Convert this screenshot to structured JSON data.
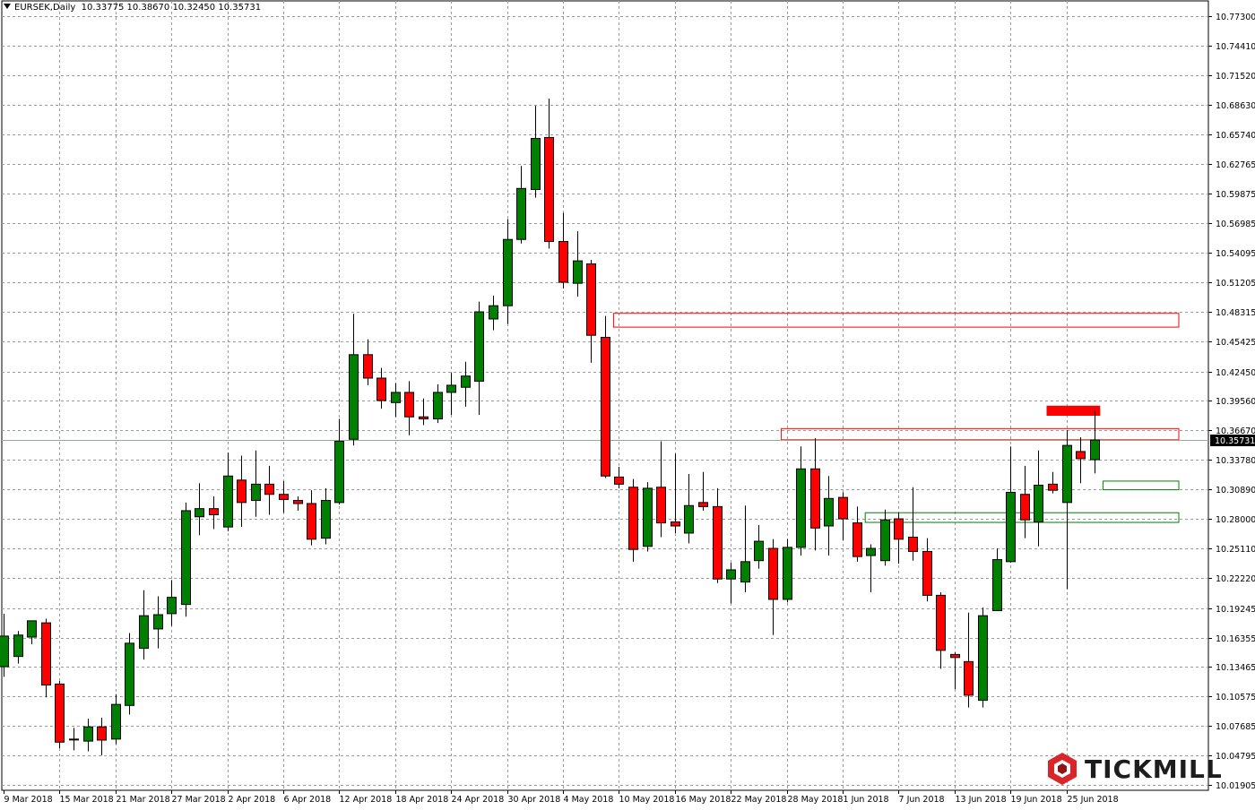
{
  "header": {
    "symbol": "EURSEK,Daily",
    "ohlc": "10.33775 10.38670 10.32450 10.35731"
  },
  "brand": {
    "name": "TICKMILL",
    "icon": "tickmill-hexagon-logo",
    "color": "#d9262a"
  },
  "colors": {
    "bull": "#008000",
    "bear": "#ff0000",
    "grid": "#9a9a9a",
    "zone_red": "#ff0000",
    "zone_green": "#008000",
    "price_line": "#9aa69a"
  },
  "chart_data": {
    "type": "candlestick",
    "title": "EURSEK,Daily",
    "current_price": "10.35731",
    "y_ticks": [
      "10.77300",
      "10.74410",
      "10.71520",
      "10.68630",
      "10.65740",
      "10.62765",
      "10.59875",
      "10.56985",
      "10.54095",
      "10.51205",
      "10.48315",
      "10.45425",
      "10.42450",
      "10.39560",
      "10.36670",
      "10.33780",
      "10.30890",
      "10.28000",
      "10.25110",
      "10.22220",
      "10.19245",
      "10.16355",
      "10.13465",
      "10.10575",
      "10.07685",
      "10.04795",
      "10.01905"
    ],
    "x_ticks": [
      "9 Mar 2018",
      "15 Mar 2018",
      "21 Mar 2018",
      "27 Mar 2018",
      "2 Apr 2018",
      "6 Apr 2018",
      "12 Apr 2018",
      "18 Apr 2018",
      "24 Apr 2018",
      "30 Apr 2018",
      "4 May 2018",
      "10 May 2018",
      "16 May 2018",
      "22 May 2018",
      "28 May 2018",
      "1 Jun 2018",
      "7 Jun 2018",
      "13 Jun 2018",
      "19 Jun 2018",
      "25 Jun 2018"
    ],
    "candles": [
      {
        "o": 10.135,
        "h": 10.187,
        "l": 10.125,
        "c": 10.165
      },
      {
        "o": 10.145,
        "h": 10.17,
        "l": 10.138,
        "c": 10.166
      },
      {
        "o": 10.164,
        "h": 10.178,
        "l": 10.157,
        "c": 10.18
      },
      {
        "o": 10.178,
        "h": 10.182,
        "l": 10.105,
        "c": 10.117
      },
      {
        "o": 10.118,
        "h": 10.121,
        "l": 10.055,
        "c": 10.061
      },
      {
        "o": 10.064,
        "h": 10.075,
        "l": 10.053,
        "c": 10.064
      },
      {
        "o": 10.062,
        "h": 10.084,
        "l": 10.052,
        "c": 10.076
      },
      {
        "o": 10.076,
        "h": 10.085,
        "l": 10.048,
        "c": 10.063
      },
      {
        "o": 10.064,
        "h": 10.108,
        "l": 10.059,
        "c": 10.098
      },
      {
        "o": 10.097,
        "h": 10.168,
        "l": 10.088,
        "c": 10.158
      },
      {
        "o": 10.153,
        "h": 10.21,
        "l": 10.142,
        "c": 10.185
      },
      {
        "o": 10.172,
        "h": 10.204,
        "l": 10.153,
        "c": 10.186
      },
      {
        "o": 10.187,
        "h": 10.22,
        "l": 10.175,
        "c": 10.203
      },
      {
        "o": 10.196,
        "h": 10.296,
        "l": 10.184,
        "c": 10.288
      },
      {
        "o": 10.282,
        "h": 10.315,
        "l": 10.264,
        "c": 10.29
      },
      {
        "o": 10.29,
        "h": 10.302,
        "l": 10.27,
        "c": 10.284
      },
      {
        "o": 10.272,
        "h": 10.345,
        "l": 10.268,
        "c": 10.322
      },
      {
        "o": 10.318,
        "h": 10.342,
        "l": 10.272,
        "c": 10.296
      },
      {
        "o": 10.298,
        "h": 10.347,
        "l": 10.282,
        "c": 10.314
      },
      {
        "o": 10.314,
        "h": 10.332,
        "l": 10.284,
        "c": 10.304
      },
      {
        "o": 10.304,
        "h": 10.317,
        "l": 10.286,
        "c": 10.299
      },
      {
        "o": 10.298,
        "h": 10.302,
        "l": 10.288,
        "c": 10.295
      },
      {
        "o": 10.295,
        "h": 10.308,
        "l": 10.254,
        "c": 10.26
      },
      {
        "o": 10.261,
        "h": 10.31,
        "l": 10.255,
        "c": 10.298
      },
      {
        "o": 10.296,
        "h": 10.378,
        "l": 10.294,
        "c": 10.356
      },
      {
        "o": 10.358,
        "h": 10.481,
        "l": 10.352,
        "c": 10.441
      },
      {
        "o": 10.441,
        "h": 10.456,
        "l": 10.411,
        "c": 10.418
      },
      {
        "o": 10.418,
        "h": 10.428,
        "l": 10.388,
        "c": 10.396
      },
      {
        "o": 10.394,
        "h": 10.413,
        "l": 10.38,
        "c": 10.404
      },
      {
        "o": 10.404,
        "h": 10.415,
        "l": 10.362,
        "c": 10.38
      },
      {
        "o": 10.38,
        "h": 10.398,
        "l": 10.372,
        "c": 10.378
      },
      {
        "o": 10.378,
        "h": 10.412,
        "l": 10.374,
        "c": 10.404
      },
      {
        "o": 10.404,
        "h": 10.423,
        "l": 10.382,
        "c": 10.411
      },
      {
        "o": 10.409,
        "h": 10.434,
        "l": 10.39,
        "c": 10.42
      },
      {
        "o": 10.415,
        "h": 10.493,
        "l": 10.382,
        "c": 10.483
      },
      {
        "o": 10.476,
        "h": 10.499,
        "l": 10.465,
        "c": 10.489
      },
      {
        "o": 10.489,
        "h": 10.574,
        "l": 10.471,
        "c": 10.554
      },
      {
        "o": 10.554,
        "h": 10.626,
        "l": 10.55,
        "c": 10.604
      },
      {
        "o": 10.603,
        "h": 10.685,
        "l": 10.595,
        "c": 10.653
      },
      {
        "o": 10.654,
        "h": 10.692,
        "l": 10.545,
        "c": 10.552
      },
      {
        "o": 10.552,
        "h": 10.58,
        "l": 10.506,
        "c": 10.512
      },
      {
        "o": 10.511,
        "h": 10.562,
        "l": 10.498,
        "c": 10.533
      },
      {
        "o": 10.53,
        "h": 10.534,
        "l": 10.433,
        "c": 10.46
      },
      {
        "o": 10.458,
        "h": 10.479,
        "l": 10.32,
        "c": 10.322
      },
      {
        "o": 10.321,
        "h": 10.331,
        "l": 10.31,
        "c": 10.314
      },
      {
        "o": 10.311,
        "h": 10.319,
        "l": 10.238,
        "c": 10.25
      },
      {
        "o": 10.253,
        "h": 10.316,
        "l": 10.248,
        "c": 10.31
      },
      {
        "o": 10.311,
        "h": 10.356,
        "l": 10.262,
        "c": 10.276
      },
      {
        "o": 10.277,
        "h": 10.344,
        "l": 10.266,
        "c": 10.273
      },
      {
        "o": 10.266,
        "h": 10.324,
        "l": 10.256,
        "c": 10.293
      },
      {
        "o": 10.296,
        "h": 10.326,
        "l": 10.288,
        "c": 10.292
      },
      {
        "o": 10.292,
        "h": 10.31,
        "l": 10.217,
        "c": 10.221
      },
      {
        "o": 10.221,
        "h": 10.237,
        "l": 10.197,
        "c": 10.23
      },
      {
        "o": 10.218,
        "h": 10.293,
        "l": 10.208,
        "c": 10.238
      },
      {
        "o": 10.239,
        "h": 10.274,
        "l": 10.231,
        "c": 10.258
      },
      {
        "o": 10.251,
        "h": 10.26,
        "l": 10.166,
        "c": 10.201
      },
      {
        "o": 10.201,
        "h": 10.26,
        "l": 10.198,
        "c": 10.252
      },
      {
        "o": 10.252,
        "h": 10.351,
        "l": 10.244,
        "c": 10.329
      },
      {
        "o": 10.329,
        "h": 10.359,
        "l": 10.249,
        "c": 10.271
      },
      {
        "o": 10.273,
        "h": 10.322,
        "l": 10.244,
        "c": 10.3
      },
      {
        "o": 10.301,
        "h": 10.306,
        "l": 10.259,
        "c": 10.28
      },
      {
        "o": 10.276,
        "h": 10.292,
        "l": 10.238,
        "c": 10.243
      },
      {
        "o": 10.244,
        "h": 10.255,
        "l": 10.208,
        "c": 10.251
      },
      {
        "o": 10.239,
        "h": 10.289,
        "l": 10.234,
        "c": 10.279
      },
      {
        "o": 10.28,
        "h": 10.286,
        "l": 10.236,
        "c": 10.26
      },
      {
        "o": 10.262,
        "h": 10.311,
        "l": 10.239,
        "c": 10.248
      },
      {
        "o": 10.248,
        "h": 10.261,
        "l": 10.199,
        "c": 10.205
      },
      {
        "o": 10.205,
        "h": 10.208,
        "l": 10.133,
        "c": 10.151
      },
      {
        "o": 10.147,
        "h": 10.149,
        "l": 10.113,
        "c": 10.144
      },
      {
        "o": 10.14,
        "h": 10.188,
        "l": 10.095,
        "c": 10.107
      },
      {
        "o": 10.102,
        "h": 10.193,
        "l": 10.095,
        "c": 10.185
      },
      {
        "o": 10.19,
        "h": 10.251,
        "l": 10.19,
        "c": 10.24
      },
      {
        "o": 10.238,
        "h": 10.351,
        "l": 10.237,
        "c": 10.306
      },
      {
        "o": 10.304,
        "h": 10.332,
        "l": 10.261,
        "c": 10.279
      },
      {
        "o": 10.277,
        "h": 10.347,
        "l": 10.253,
        "c": 10.313
      },
      {
        "o": 10.314,
        "h": 10.326,
        "l": 10.305,
        "c": 10.308
      },
      {
        "o": 10.296,
        "h": 10.367,
        "l": 10.211,
        "c": 10.352
      },
      {
        "o": 10.346,
        "h": 10.36,
        "l": 10.315,
        "c": 10.339
      },
      {
        "o": 10.338,
        "h": 10.3867,
        "l": 10.3245,
        "c": 10.3573
      }
    ],
    "zones": [
      {
        "y1": 10.4815,
        "y2": 10.468,
        "from": 44,
        "color": "red"
      },
      {
        "y1": 10.3685,
        "y2": 10.3575,
        "from": 56,
        "color": "red"
      },
      {
        "y1": 10.3905,
        "y2": 10.3815,
        "from": 75,
        "to": 78,
        "color": "red",
        "filled": true
      },
      {
        "y1": 10.317,
        "y2": 10.3085,
        "from": 79,
        "color": "green"
      },
      {
        "y1": 10.286,
        "y2": 10.2765,
        "from": 62,
        "color": "green"
      }
    ]
  }
}
